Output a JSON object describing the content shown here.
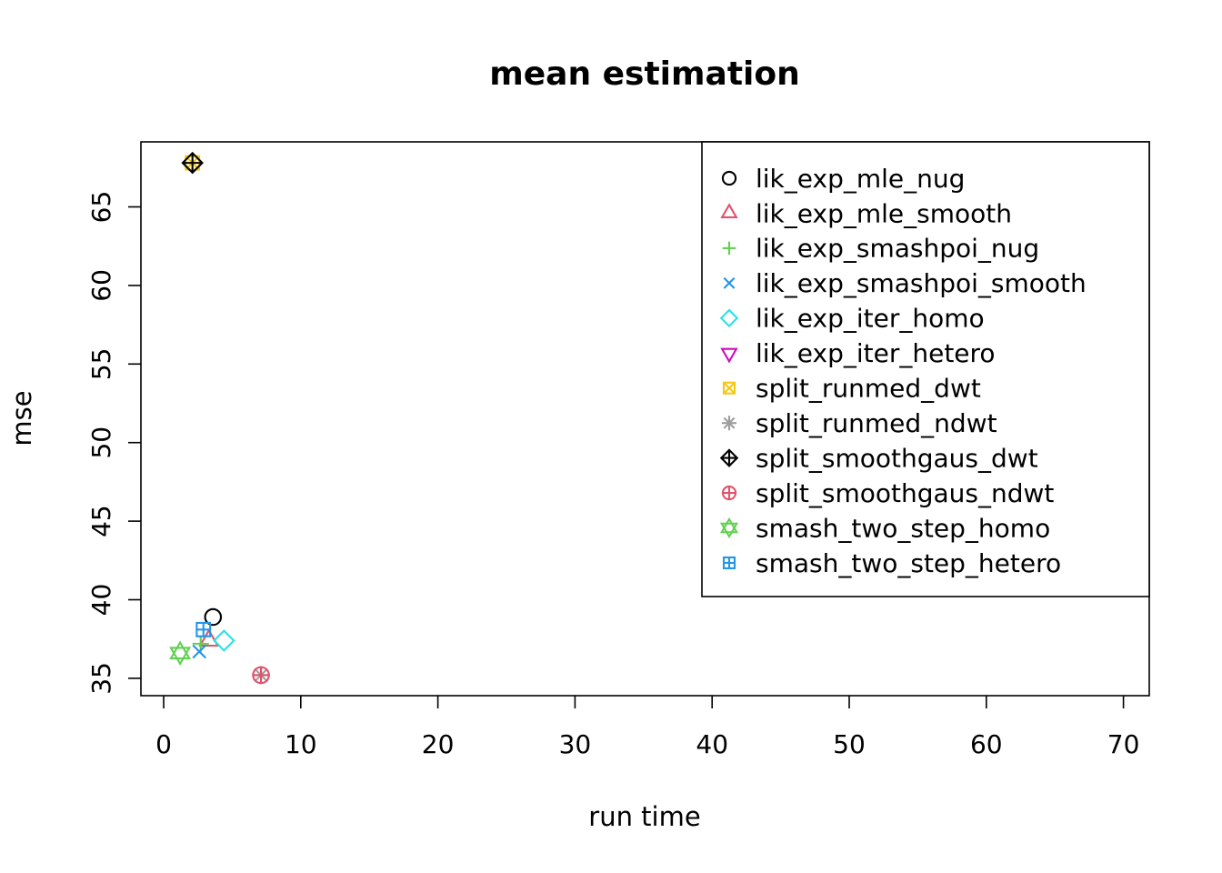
{
  "chart_data": {
    "type": "scatter",
    "title": "mean estimation",
    "xlabel": "run time",
    "ylabel": "mse",
    "xlim": [
      -1.7,
      71.9
    ],
    "ylim": [
      33.9,
      69.1
    ],
    "xticks": [
      0,
      10,
      20,
      30,
      40,
      50,
      60,
      70
    ],
    "yticks": [
      35,
      40,
      45,
      50,
      55,
      60,
      65
    ],
    "grid": false,
    "legend_position": "top-right",
    "series": [
      {
        "name": "lik_exp_mle_nug",
        "marker": "circle",
        "color": "#000000",
        "point": {
          "x": 3.6,
          "y": 38.9
        }
      },
      {
        "name": "lik_exp_mle_smooth",
        "marker": "triangle-up",
        "color": "#DF536B",
        "point": {
          "x": 3.3,
          "y": 37.4
        }
      },
      {
        "name": "lik_exp_smashpoi_nug",
        "marker": "plus",
        "color": "#61D04F",
        "point": {
          "x": 2.7,
          "y": 37.2
        }
      },
      {
        "name": "lik_exp_smashpoi_smooth",
        "marker": "x",
        "color": "#2297E6",
        "point": {
          "x": 2.6,
          "y": 36.7
        }
      },
      {
        "name": "lik_exp_iter_homo",
        "marker": "diamond",
        "color": "#28E2E5",
        "point": {
          "x": 4.4,
          "y": 37.4
        }
      },
      {
        "name": "lik_exp_iter_hetero",
        "marker": "triangle-down",
        "color": "#CD0BBC",
        "point": null
      },
      {
        "name": "split_runmed_dwt",
        "marker": "square-x",
        "color": "#F5C710",
        "point": {
          "x": 2.1,
          "y": 67.8
        }
      },
      {
        "name": "split_runmed_ndwt",
        "marker": "asterisk",
        "color": "#9E9E9E",
        "point": {
          "x": 7.1,
          "y": 35.2
        }
      },
      {
        "name": "split_smoothgaus_dwt",
        "marker": "diamond-plus",
        "color": "#000000",
        "point": {
          "x": 2.1,
          "y": 67.8
        }
      },
      {
        "name": "split_smoothgaus_ndwt",
        "marker": "circle-plus",
        "color": "#DF536B",
        "point": {
          "x": 7.1,
          "y": 35.2
        }
      },
      {
        "name": "smash_two_step_homo",
        "marker": "star-of-david",
        "color": "#61D04F",
        "point": {
          "x": 1.2,
          "y": 36.6
        }
      },
      {
        "name": "smash_two_step_hetero",
        "marker": "square-plus",
        "color": "#2297E6",
        "point": {
          "x": 2.9,
          "y": 38.1
        }
      }
    ],
    "axis_color": "#000000",
    "background_color": "#ffffff"
  }
}
